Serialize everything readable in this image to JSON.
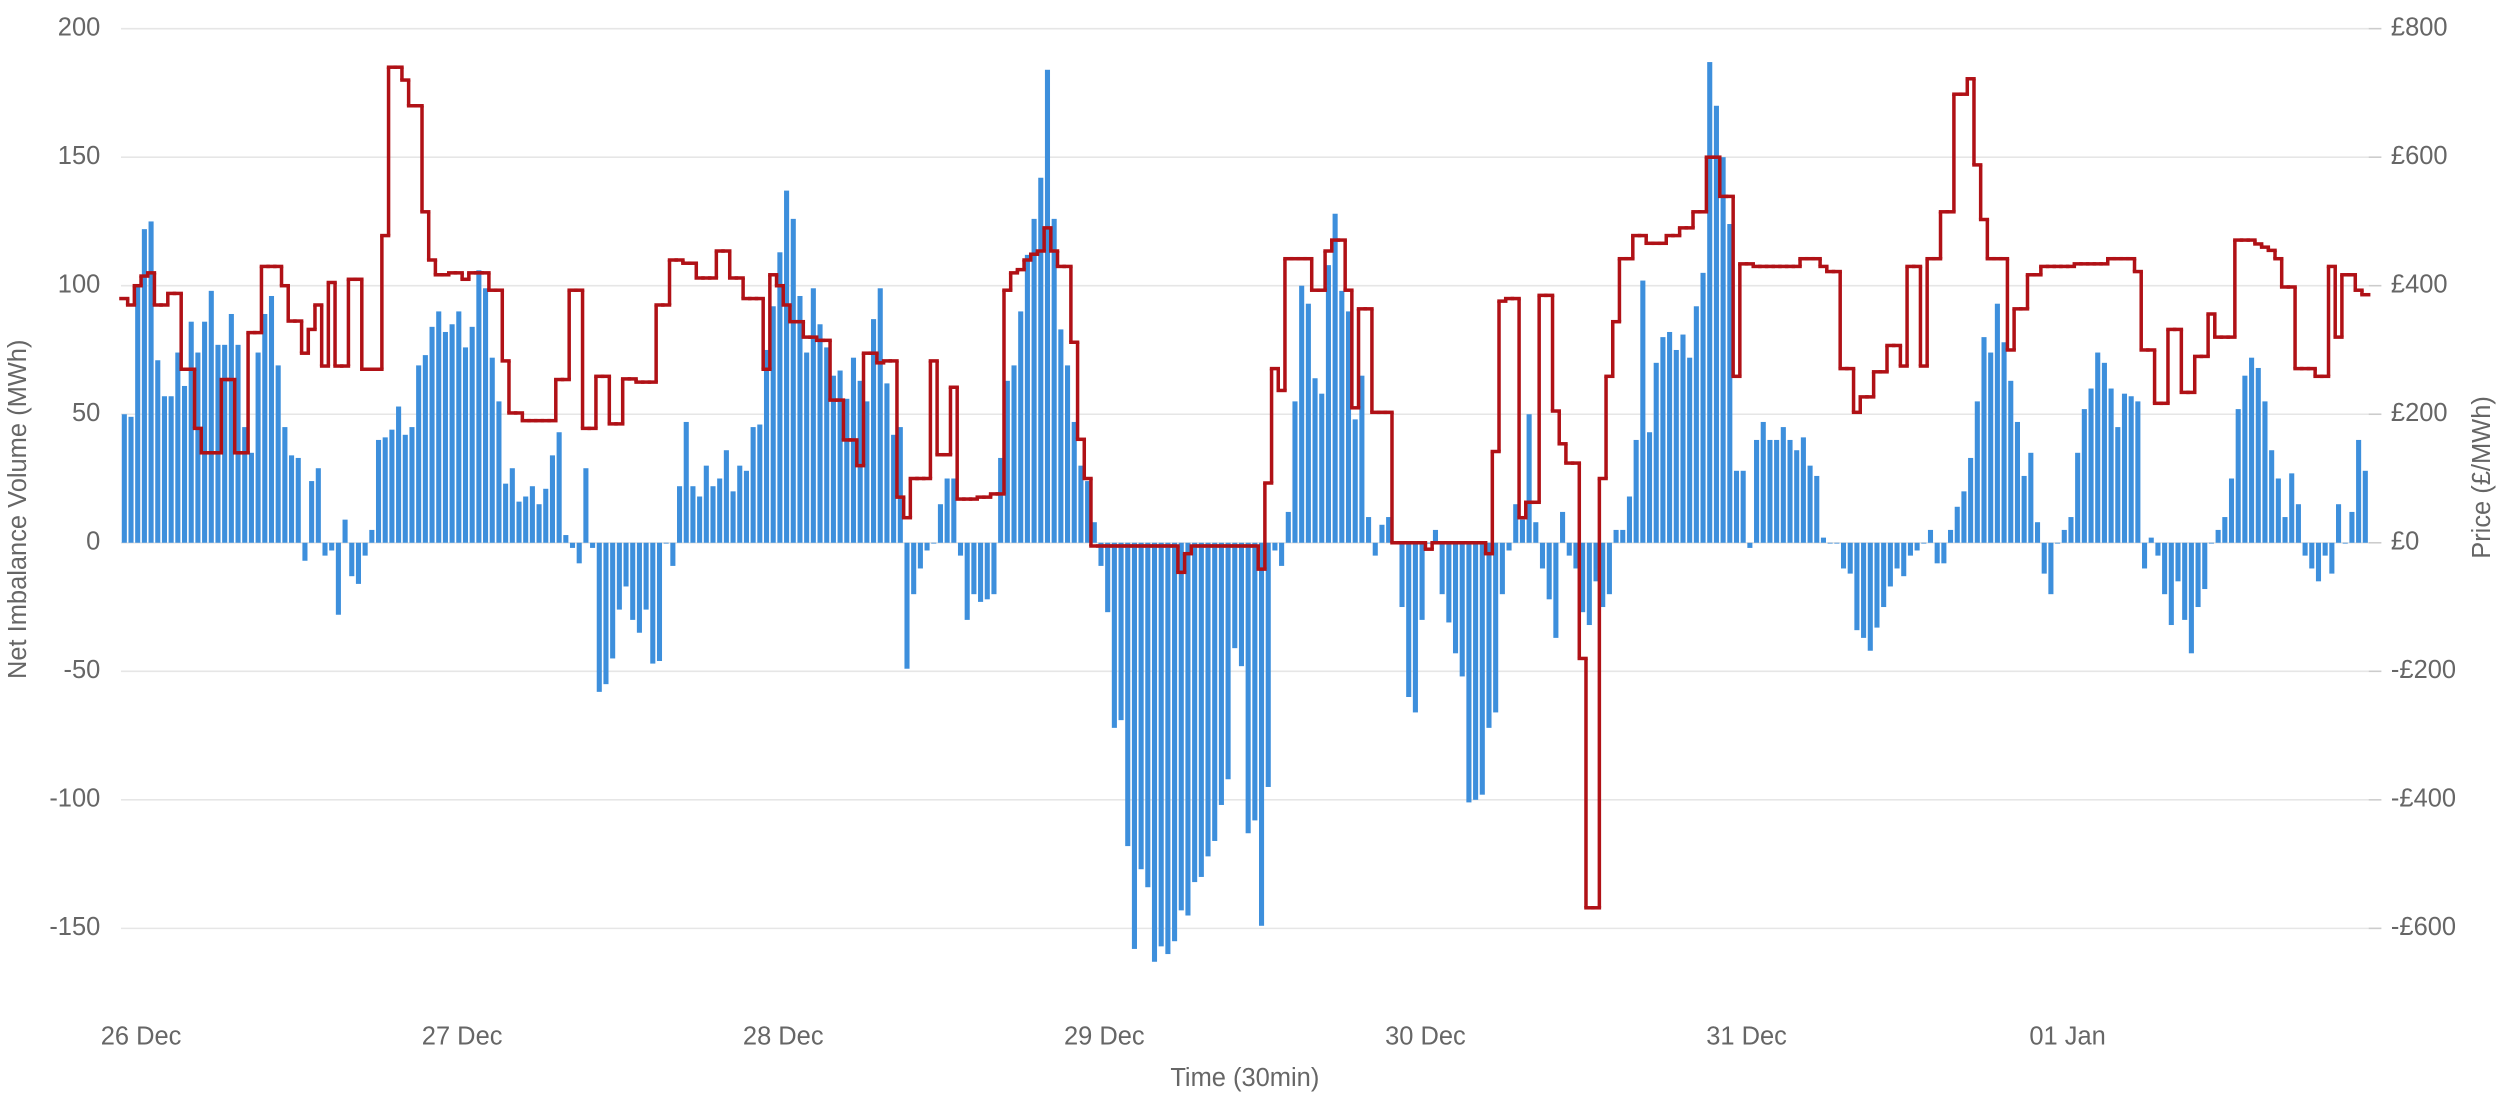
{
  "chart_data": {
    "type": "combo",
    "x_label": "Time (30min)",
    "y_label": "Net Imbalance Volume (MWh)",
    "y2_label": "Price (£/MWh)",
    "xlim": [
      0,
      336
    ],
    "xticks": [
      {
        "value": 3,
        "label": "26 Dec"
      },
      {
        "value": 51,
        "label": "27 Dec"
      },
      {
        "value": 99,
        "label": "28 Dec"
      },
      {
        "value": 147,
        "label": "29 Dec"
      },
      {
        "value": 195,
        "label": "30 Dec"
      },
      {
        "value": 243,
        "label": "31 Dec"
      },
      {
        "value": 291,
        "label": "01 Jan"
      }
    ],
    "ylim": [
      -170,
      200
    ],
    "yticks": [
      200,
      150,
      100,
      50,
      0,
      -50,
      -100,
      -150
    ],
    "y2lim": [
      -680,
      800
    ],
    "y2ticks": [
      {
        "value": 800,
        "label": "£800"
      },
      {
        "value": 600,
        "label": "£600"
      },
      {
        "value": 400,
        "label": "£400"
      },
      {
        "value": 200,
        "label": "£200"
      },
      {
        "value": 0,
        "label": "£0"
      },
      {
        "value": -200,
        "label": "-£200"
      },
      {
        "value": -400,
        "label": "-£400"
      },
      {
        "value": -600,
        "label": "-£600"
      }
    ],
    "grid": true,
    "x": [
      0,
      1,
      2,
      3,
      4,
      5,
      6,
      7,
      8,
      9,
      10,
      11,
      12,
      13,
      14,
      15,
      16,
      17,
      18,
      19,
      20,
      21,
      22,
      23,
      24,
      25,
      26,
      27,
      28,
      29,
      30,
      31,
      32,
      33,
      34,
      35,
      36,
      37,
      38,
      39,
      40,
      41,
      42,
      43,
      44,
      45,
      46,
      47,
      48,
      49,
      50,
      51,
      52,
      53,
      54,
      55,
      56,
      57,
      58,
      59,
      60,
      61,
      62,
      63,
      64,
      65,
      66,
      67,
      68,
      69,
      70,
      71,
      72,
      73,
      74,
      75,
      76,
      77,
      78,
      79,
      80,
      81,
      82,
      83,
      84,
      85,
      86,
      87,
      88,
      89,
      90,
      91,
      92,
      93,
      94,
      95,
      96,
      97,
      98,
      99,
      100,
      101,
      102,
      103,
      104,
      105,
      106,
      107,
      108,
      109,
      110,
      111,
      112,
      113,
      114,
      115,
      116,
      117,
      118,
      119,
      120,
      121,
      122,
      123,
      124,
      125,
      126,
      127,
      128,
      129,
      130,
      131,
      132,
      133,
      134,
      135,
      136,
      137,
      138,
      139,
      140,
      141,
      142,
      143,
      144,
      145,
      146,
      147,
      148,
      149,
      150,
      151,
      152,
      153,
      154,
      155,
      156,
      157,
      158,
      159,
      160,
      161,
      162,
      163,
      164,
      165,
      166,
      167,
      168,
      169,
      170,
      171,
      172,
      173,
      174,
      175,
      176,
      177,
      178,
      179,
      180,
      181,
      182,
      183,
      184,
      185,
      186,
      187,
      188,
      189,
      190,
      191,
      192,
      193,
      194,
      195,
      196,
      197,
      198,
      199,
      200,
      201,
      202,
      203,
      204,
      205,
      206,
      207,
      208,
      209,
      210,
      211,
      212,
      213,
      214,
      215,
      216,
      217,
      218,
      219,
      220,
      221,
      222,
      223,
      224,
      225,
      226,
      227,
      228,
      229,
      230,
      231,
      232,
      233,
      234,
      235,
      236,
      237,
      238,
      239,
      240,
      241,
      242,
      243,
      244,
      245,
      246,
      247,
      248,
      249,
      250,
      251,
      252,
      253,
      254,
      255,
      256,
      257,
      258,
      259,
      260,
      261,
      262,
      263,
      264,
      265,
      266,
      267,
      268,
      269,
      270,
      271,
      272,
      273,
      274,
      275,
      276,
      277,
      278,
      279,
      280,
      281,
      282,
      283,
      284,
      285,
      286,
      287,
      288,
      289,
      290,
      291,
      292,
      293,
      294,
      295,
      296,
      297,
      298,
      299,
      300,
      301,
      302,
      303,
      304,
      305,
      306,
      307,
      308,
      309,
      310,
      311,
      312,
      313,
      314,
      315,
      316,
      317,
      318,
      319,
      320,
      321,
      322,
      323,
      324,
      325,
      326,
      327,
      328,
      329,
      330,
      331,
      332,
      333,
      334,
      335
    ],
    "series": [
      {
        "type": "bar",
        "color": "#3d8fdc",
        "values": [
          50,
          49,
          100,
          122,
          125,
          71,
          57,
          57,
          74,
          61,
          86,
          74,
          86,
          98,
          77,
          77,
          89,
          77,
          45,
          35,
          74,
          89,
          96,
          69,
          45,
          34,
          33,
          -7,
          24,
          29,
          -5,
          -3,
          -28,
          9,
          -13,
          -16,
          -5,
          5,
          40,
          41,
          44,
          53,
          42,
          45,
          69,
          73,
          84,
          90,
          82,
          85,
          90,
          76,
          84,
          106,
          99,
          72,
          55,
          23,
          29,
          16,
          18,
          22,
          15,
          21,
          34,
          43,
          3,
          -2,
          -8,
          29,
          -2,
          -58,
          -55,
          -45,
          -26,
          -17,
          -30,
          -35,
          -26,
          -47,
          -46,
          0,
          -9,
          22,
          47,
          22,
          18,
          30,
          22,
          25,
          36,
          20,
          30,
          28,
          45,
          46,
          75,
          92,
          113,
          137,
          126,
          96,
          74,
          99,
          85,
          76,
          65,
          67,
          56,
          72,
          63,
          55,
          87,
          99,
          62,
          42,
          45,
          -49,
          -20,
          -10,
          -3,
          0,
          15,
          25,
          25,
          -5,
          -30,
          -20,
          -23,
          -22,
          -20,
          33,
          63,
          69,
          90,
          112,
          126,
          142,
          184,
          126,
          83,
          69,
          47,
          30,
          24,
          8,
          -9,
          -27,
          -72,
          -69,
          -118,
          -158,
          -127,
          -134,
          -163,
          -157,
          -160,
          -155,
          -143,
          -145,
          -132,
          -130,
          -122,
          -116,
          -102,
          -92,
          -41,
          -48,
          -113,
          -108,
          -149,
          -95,
          -3,
          -9,
          12,
          55,
          100,
          93,
          64,
          58,
          108,
          128,
          98,
          90,
          48,
          65,
          10,
          -5,
          7,
          10,
          0,
          -25,
          -60,
          -66,
          -30,
          0,
          5,
          -20,
          -31,
          -43,
          -52,
          -101,
          -100,
          -98,
          -72,
          -66,
          -20,
          -3,
          15,
          9,
          50,
          8,
          -10,
          -22,
          -37,
          12,
          -5,
          -10,
          -27,
          -32,
          -15,
          -25,
          -20,
          5,
          5,
          18,
          40,
          102,
          43,
          70,
          80,
          82,
          75,
          81,
          72,
          92,
          105,
          187,
          170,
          150,
          124,
          28,
          28,
          -2,
          40,
          47,
          40,
          40,
          45,
          40,
          36,
          41,
          30,
          26,
          2,
          0,
          0,
          -10,
          -12,
          -34,
          -37,
          -42,
          -33,
          -25,
          -17,
          -10,
          -13,
          -5,
          -3,
          0,
          5,
          -8,
          -8,
          5,
          14,
          20,
          33,
          55,
          80,
          74,
          93,
          78,
          63,
          47,
          26,
          35,
          8,
          -12,
          -20,
          0,
          5,
          10,
          35,
          52,
          60,
          74,
          70,
          60,
          45,
          58,
          57,
          55,
          -10,
          2,
          -5,
          -20,
          -32,
          -15,
          -30,
          -43,
          -25,
          -18,
          0,
          5,
          10,
          25,
          52,
          65,
          72,
          68,
          55,
          36,
          25,
          10,
          27,
          15,
          -5,
          -10,
          -15,
          -5,
          -12,
          15,
          0,
          12,
          40,
          28
        ]
      },
      {
        "type": "line",
        "axis": "y2",
        "color": "#b01116",
        "values": [
          380,
          370,
          400,
          415,
          420,
          370,
          370,
          388,
          388,
          270,
          270,
          178,
          140,
          140,
          140,
          254,
          254,
          140,
          140,
          327,
          327,
          430,
          430,
          430,
          400,
          345,
          345,
          295,
          332,
          370,
          275,
          405,
          275,
          275,
          410,
          410,
          270,
          270,
          270,
          478,
          740,
          740,
          720,
          680,
          680,
          515,
          440,
          417,
          417,
          420,
          420,
          410,
          420,
          420,
          420,
          393,
          393,
          283,
          202,
          202,
          190,
          190,
          190,
          190,
          190,
          254,
          254,
          393,
          393,
          178,
          178,
          259,
          259,
          185,
          185,
          255,
          255,
          250,
          250,
          250,
          370,
          370,
          440,
          440,
          435,
          435,
          412,
          412,
          412,
          454,
          454,
          412,
          412,
          380,
          380,
          380,
          270,
          417,
          400,
          370,
          344,
          344,
          320,
          320,
          315,
          315,
          222,
          222,
          160,
          160,
          120,
          295,
          295,
          280,
          283,
          283,
          71,
          39,
          100,
          100,
          100,
          283,
          137,
          137,
          242,
          68,
          68,
          68,
          71,
          71,
          76,
          76,
          393,
          420,
          425,
          440,
          449,
          454,
          490,
          454,
          430,
          430,
          312,
          161,
          100,
          -5,
          -5,
          -5,
          -5,
          -5,
          -5,
          -5,
          -5,
          -5,
          -5,
          -5,
          -5,
          -5,
          -46,
          -17,
          -5,
          -5,
          -5,
          -5,
          -5,
          -5,
          -5,
          -5,
          -5,
          -5,
          -41,
          93,
          271,
          237,
          442,
          442,
          442,
          442,
          393,
          393,
          454,
          471,
          471,
          393,
          210,
          364,
          364,
          203,
          203,
          203,
          0,
          0,
          0,
          0,
          0,
          -10,
          0,
          0,
          0,
          0,
          0,
          0,
          0,
          0,
          -17,
          142,
          376,
          380,
          380,
          39,
          63,
          63,
          385,
          385,
          205,
          154,
          124,
          124,
          -180,
          -568,
          -568,
          100,
          259,
          344,
          442,
          442,
          478,
          478,
          466,
          466,
          466,
          478,
          478,
          490,
          490,
          515,
          515,
          600,
          600,
          539,
          539,
          259,
          434,
          434,
          430,
          430,
          430,
          430,
          430,
          430,
          430,
          442,
          442,
          442,
          430,
          422,
          422,
          271,
          271,
          203,
          227,
          227,
          266,
          266,
          307,
          307,
          275,
          430,
          430,
          275,
          442,
          442,
          515,
          515,
          698,
          698,
          722,
          588,
          503,
          442,
          442,
          442,
          300,
          364,
          364,
          417,
          417,
          430,
          430,
          430,
          430,
          430,
          434,
          434,
          434,
          434,
          434,
          442,
          442,
          442,
          442,
          422,
          300,
          300,
          217,
          217,
          332,
          332,
          234,
          234,
          290,
          290,
          356,
          320,
          320,
          320,
          471,
          471,
          471,
          465,
          460,
          455,
          442,
          398,
          398,
          271,
          271,
          271,
          259,
          259,
          430,
          320,
          417,
          417,
          393,
          386
        ]
      }
    ]
  }
}
